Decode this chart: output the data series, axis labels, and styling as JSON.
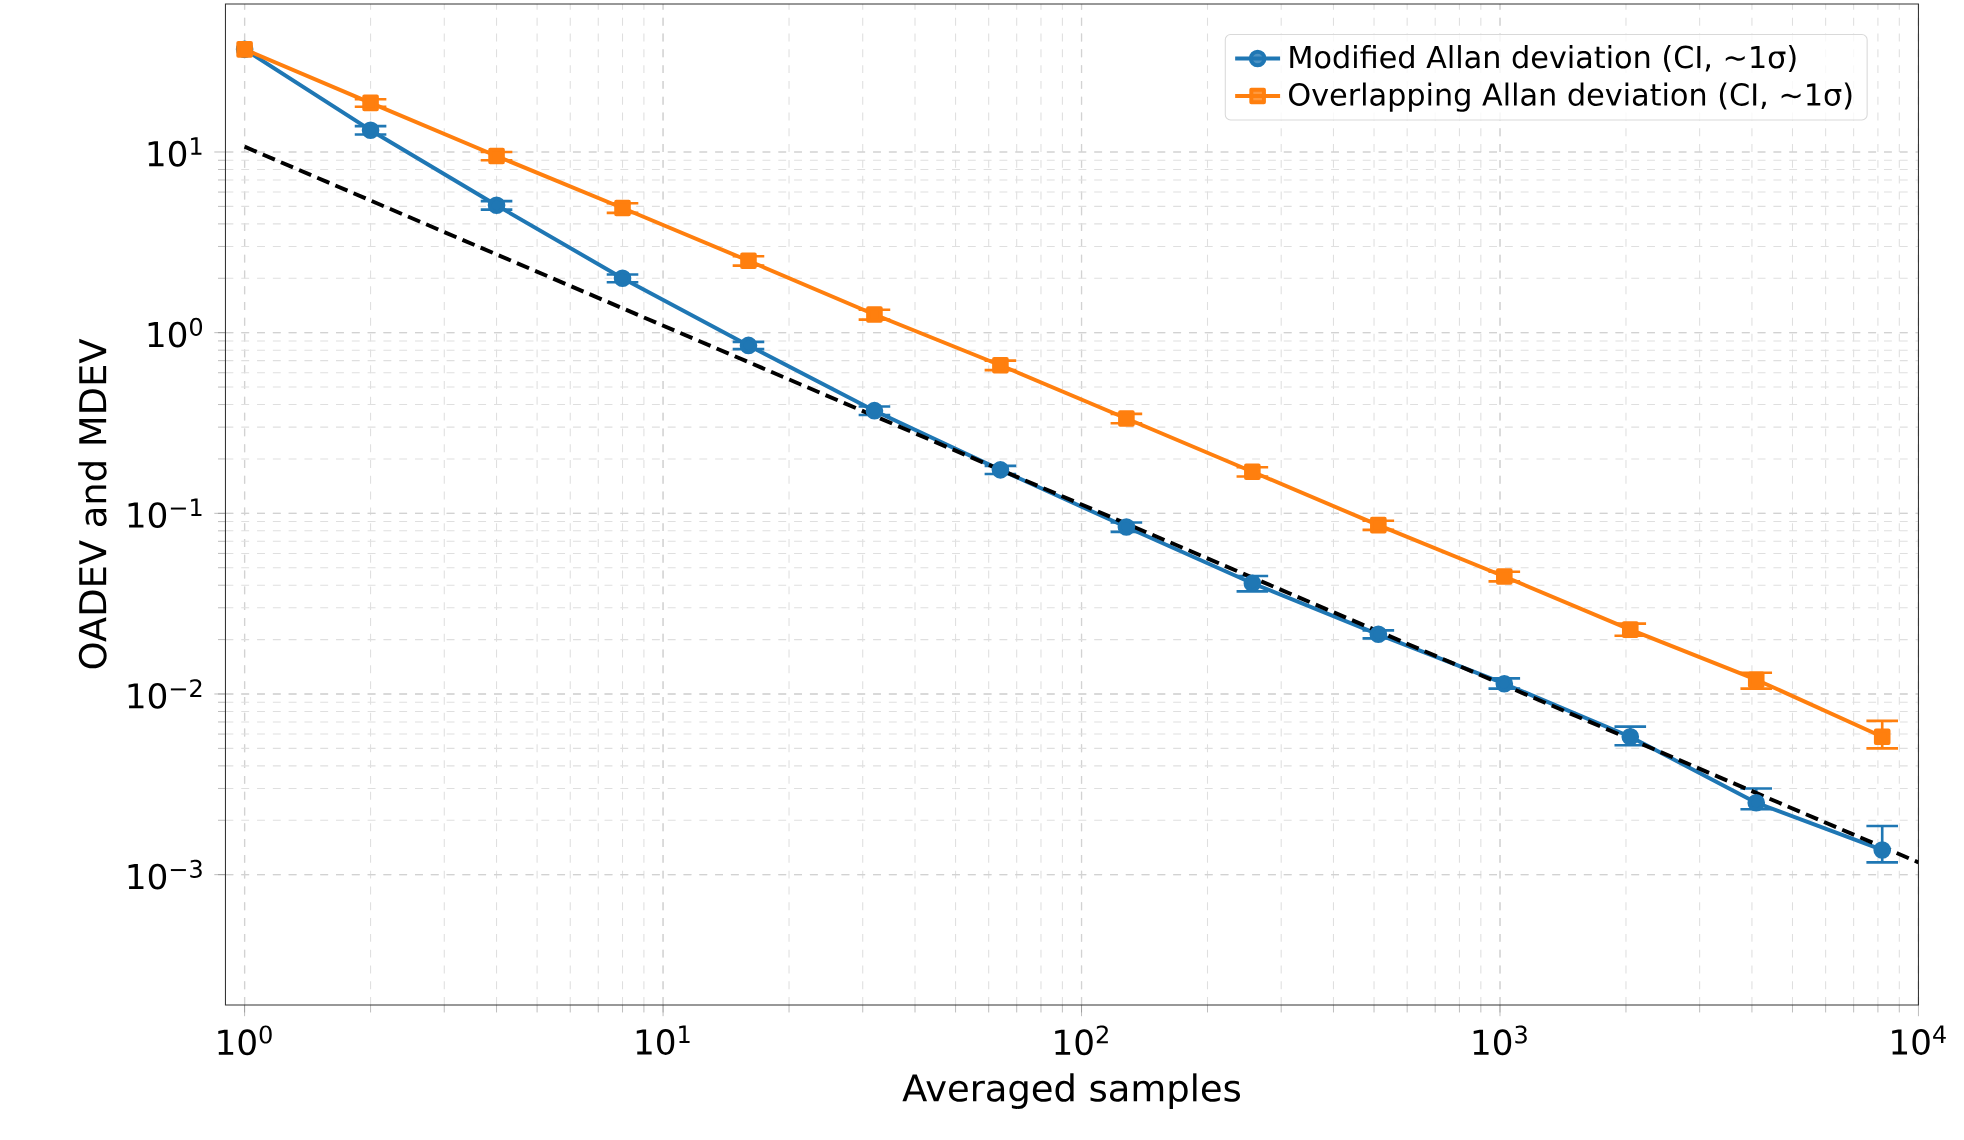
{
  "chart_data": {
    "type": "line",
    "xlabel": "Averaged samples",
    "ylabel": "OADEV and MDEV",
    "log": "xy",
    "grid": true,
    "legend": "top right",
    "xlim": [
      0.9,
      10000
    ],
    "ylim": [
      0.00019,
      66
    ],
    "xticks": [
      {
        "value": 1,
        "label": "10$^{0}$"
      },
      {
        "value": 10,
        "label": "10$^{1}$"
      },
      {
        "value": 100,
        "label": "10$^{2}$"
      },
      {
        "value": 1000,
        "label": "10$^{3}$"
      },
      {
        "value": 10000,
        "label": "10$^{4}$"
      }
    ],
    "yticks": [
      {
        "value": 0.001,
        "label": "10$^{−3}$"
      },
      {
        "value": 0.01,
        "label": "10$^{−2}$"
      },
      {
        "value": 0.1,
        "label": "10$^{−1}$"
      },
      {
        "value": 1,
        "label": "10$^{0}$"
      },
      {
        "value": 10,
        "label": "10$^{1}$"
      }
    ],
    "x": [
      1,
      2,
      4,
      8,
      16,
      32,
      64,
      128,
      256,
      512,
      1024,
      2048,
      4096,
      8192
    ],
    "series": [
      {
        "name": "Modified Allan deviation (CI, ~1σ)",
        "color": "#1f77b4",
        "marker": "circle",
        "values": [
          37,
          13.2,
          5.07,
          2.0,
          0.85,
          0.37,
          0.174,
          0.084,
          0.041,
          0.0214,
          0.0114,
          0.0058,
          0.0025,
          0.00137
        ],
        "errors": [
          null,
          [
            12.5,
            13.9
          ],
          [
            4.8,
            5.35
          ],
          [
            1.9,
            2.1
          ],
          [
            0.81,
            0.89
          ],
          [
            0.35,
            0.39
          ],
          [
            0.165,
            0.183
          ],
          [
            0.079,
            0.089
          ],
          [
            0.037,
            0.045
          ],
          [
            0.0203,
            0.0225
          ],
          [
            0.0107,
            0.0122
          ],
          [
            0.0052,
            0.0066
          ],
          [
            0.0023,
            0.003
          ],
          [
            0.00117,
            0.00186
          ]
        ]
      },
      {
        "name": "Overlapping Allan deviation (CI, ~1σ)",
        "color": "#ff7f0e",
        "marker": "square",
        "values": [
          37,
          18.7,
          9.5,
          4.9,
          2.5,
          1.26,
          0.66,
          0.335,
          0.17,
          0.086,
          0.0447,
          0.0227,
          0.012,
          0.0058
        ],
        "errors": [
          null,
          [
            17.8,
            19.6
          ],
          [
            9.0,
            10.0
          ],
          [
            4.6,
            5.2
          ],
          [
            2.35,
            2.65
          ],
          [
            1.18,
            1.34
          ],
          [
            0.62,
            0.7
          ],
          [
            0.315,
            0.355
          ],
          [
            0.16,
            0.18
          ],
          [
            0.081,
            0.091
          ],
          [
            0.042,
            0.0475
          ],
          [
            0.021,
            0.0245
          ],
          [
            0.0107,
            0.0131
          ],
          [
            0.005,
            0.0071
          ]
        ]
      },
      {
        "type": "line",
        "color": "#000000",
        "marker": "none",
        "line_style": "dashed",
        "x": [
          1,
          10000
        ],
        "values": [
          10.7,
          0.00117
        ]
      }
    ]
  }
}
